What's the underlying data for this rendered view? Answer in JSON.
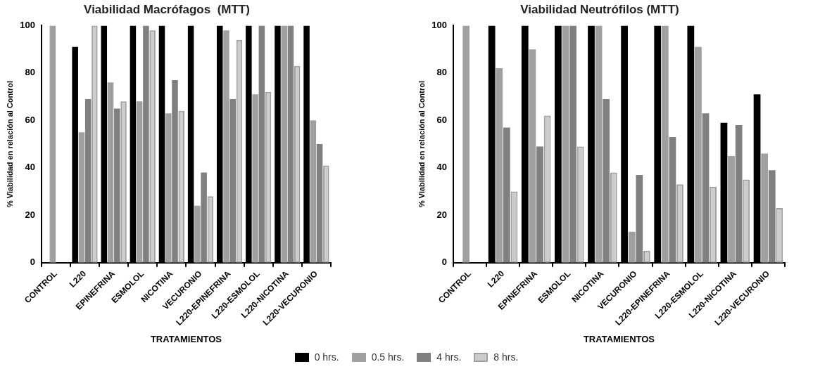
{
  "chart_data": [
    {
      "type": "bar",
      "title": "Viabilidad Macrófagos  (MTT)",
      "xlabel": "TRATAMIENTOS",
      "ylabel": "% Viabilidad en relación al Control",
      "categories": [
        "CONTROL",
        "L220",
        "EPINEFRINA",
        "ESMOLOL",
        "NICOTINA",
        "VECURONIO",
        "L220-EPINEFRINA",
        "L220-ESMOLOL",
        "L220-NICOTINA",
        "L220-VECURONIO"
      ],
      "series": [
        {
          "name": "0 hrs.",
          "color": "#000000",
          "values": [
            null,
            91,
            100,
            100,
            100,
            100,
            100,
            100,
            100,
            100
          ]
        },
        {
          "name": "0.5 hrs.",
          "color": "#a0a0a0",
          "values": [
            100,
            55,
            76,
            68,
            63,
            24,
            98,
            71,
            100,
            60
          ]
        },
        {
          "name": "4 hrs.",
          "color": "#808080",
          "values": [
            null,
            69,
            65,
            100,
            77,
            38,
            69,
            100,
            100,
            50
          ]
        },
        {
          "name": "8 hrs.",
          "color": "#cccccc",
          "values": [
            null,
            100,
            68,
            98,
            64,
            28,
            94,
            72,
            83,
            41
          ]
        }
      ],
      "ylim": [
        0,
        100
      ],
      "yticks": [
        0,
        20,
        40,
        60,
        80,
        100
      ],
      "grid": false,
      "legend": "bottom"
    },
    {
      "type": "bar",
      "title": "Viabilidad Neutrófilos (MTT)",
      "xlabel": "TRATAMIENTOS",
      "ylabel": "% Viabilidad en relación al Control",
      "categories": [
        "CONTROL",
        "L220",
        "EPINEFRINA",
        "ESMOLOL",
        "NICOTINA",
        "VECURONIO",
        "L220-EPINEFRINA",
        "L220-ESMOLOL",
        "L220-NICOTINA",
        "L220-VECURONIO"
      ],
      "series": [
        {
          "color": "#000000",
          "values": [
            null,
            100,
            100,
            100,
            100,
            100,
            100,
            100,
            59,
            71
          ]
        },
        {
          "color": "#a0a0a0",
          "values": [
            100,
            82,
            90,
            100,
            100,
            13,
            100,
            91,
            45,
            46
          ]
        },
        {
          "color": "#808080",
          "values": [
            null,
            57,
            49,
            100,
            69,
            37,
            53,
            63,
            58,
            39
          ]
        },
        {
          "color": "#cccccc",
          "values": [
            null,
            30,
            62,
            49,
            38,
            5,
            33,
            32,
            35,
            23
          ]
        }
      ],
      "ylim": [
        0,
        100
      ],
      "yticks": [
        0,
        20,
        40,
        60,
        80,
        100
      ],
      "grid": false
    }
  ]
}
